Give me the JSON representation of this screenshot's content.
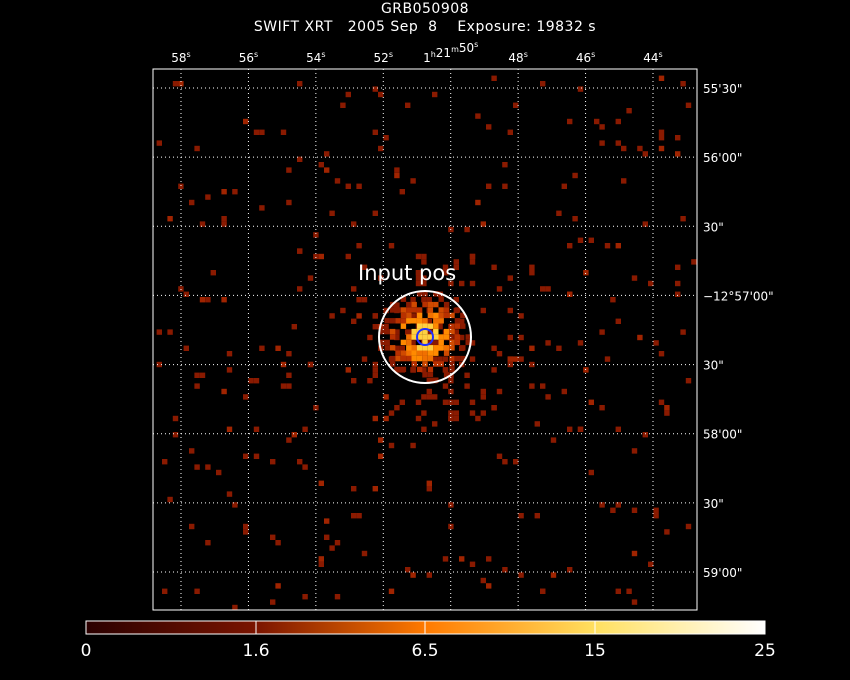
{
  "header": {
    "object_name": "GRB050908",
    "subtitle": "SWIFT XRT   2005 Sep  8    Exposure: 19832 s"
  },
  "axes": {
    "ra_ticks": [
      {
        "main": "58",
        "sup": "s",
        "ra_s": 58
      },
      {
        "main": "56",
        "sup": "s",
        "ra_s": 56
      },
      {
        "main": "54",
        "sup": "s",
        "ra_s": 54
      },
      {
        "main": "52",
        "sup": "s",
        "ra_s": 52
      },
      {
        "main": "1",
        "sup": "h",
        "main2": "21",
        "sup2": "m",
        "main3": "50",
        "sup3": "s",
        "ra_s": 50
      },
      {
        "main": "48",
        "sup": "s",
        "ra_s": 48
      },
      {
        "main": "46",
        "sup": "s",
        "ra_s": 46
      },
      {
        "main": "44",
        "sup": "s",
        "ra_s": 44
      }
    ],
    "dec_ticks": [
      {
        "label": "55'30\"",
        "dec_arcsec": -30
      },
      {
        "label": "56'00\"",
        "dec_arcsec": -60
      },
      {
        "label": "30\"",
        "dec_arcsec": -90
      },
      {
        "label": "−12°57'00\"",
        "dec_arcsec": -120
      },
      {
        "label": "30\"",
        "dec_arcsec": -150
      },
      {
        "label": "58'00\"",
        "dec_arcsec": -180
      },
      {
        "label": "30\"",
        "dec_arcsec": -210
      },
      {
        "label": "59'00\"",
        "dec_arcsec": -240
      }
    ]
  },
  "annotation": {
    "label": "Input pos",
    "center_ra_s": 50.6,
    "center_dec_arcsec": -130
  },
  "colorbar": {
    "labels": [
      "0",
      "1.6",
      "6.5",
      "15",
      "25"
    ],
    "values": [
      0,
      1.6,
      6.5,
      15,
      25
    ],
    "colors": [
      "#2a0000",
      "#8a1a00",
      "#ff8800",
      "#fff080",
      "#ffffff"
    ]
  },
  "colors": {
    "background": "#000000",
    "frame": "#ffffff",
    "grid": "#ffffff",
    "source_ring": "#2030ff"
  }
}
